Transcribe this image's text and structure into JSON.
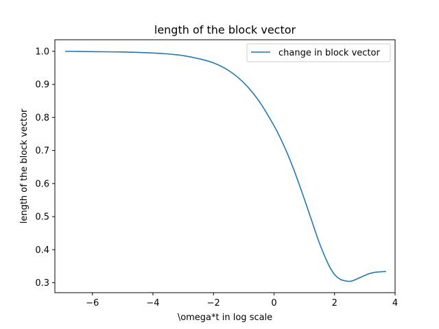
{
  "chart_data": {
    "type": "line",
    "title": "length of the block vector",
    "xlabel": "\\omega*t in log scale",
    "ylabel": "length of the block vector",
    "xlim": [
      -7.24,
      4.0
    ],
    "ylim": [
      0.27,
      1.035
    ],
    "xticks": [
      -6,
      -4,
      -2,
      0,
      2,
      4
    ],
    "xtick_labels": [
      "−6",
      "−4",
      "−2",
      "0",
      "2",
      "4"
    ],
    "yticks": [
      0.3,
      0.4,
      0.5,
      0.6,
      0.7,
      0.8,
      0.9,
      1.0
    ],
    "ytick_labels": [
      "0.3",
      "0.4",
      "0.5",
      "0.6",
      "0.7",
      "0.8",
      "0.9",
      "1.0"
    ],
    "grid": false,
    "legend_position": "top-right",
    "colors": {
      "series": "#1f77b4"
    },
    "series": [
      {
        "name": "change in block vector",
        "x": [
          -6.9,
          -6.0,
          -5.0,
          -4.0,
          -3.5,
          -3.0,
          -2.5,
          -2.0,
          -1.5,
          -1.0,
          -0.5,
          0.0,
          0.3,
          0.6,
          0.9,
          1.2,
          1.5,
          1.8,
          2.0,
          2.2,
          2.4,
          2.55,
          2.7,
          2.9,
          3.1,
          3.3,
          3.5,
          3.7
        ],
        "y": [
          1.0,
          0.999,
          0.998,
          0.995,
          0.992,
          0.987,
          0.978,
          0.965,
          0.942,
          0.905,
          0.85,
          0.775,
          0.72,
          0.655,
          0.58,
          0.5,
          0.42,
          0.355,
          0.325,
          0.31,
          0.305,
          0.305,
          0.31,
          0.318,
          0.326,
          0.331,
          0.333,
          0.334
        ]
      }
    ]
  }
}
